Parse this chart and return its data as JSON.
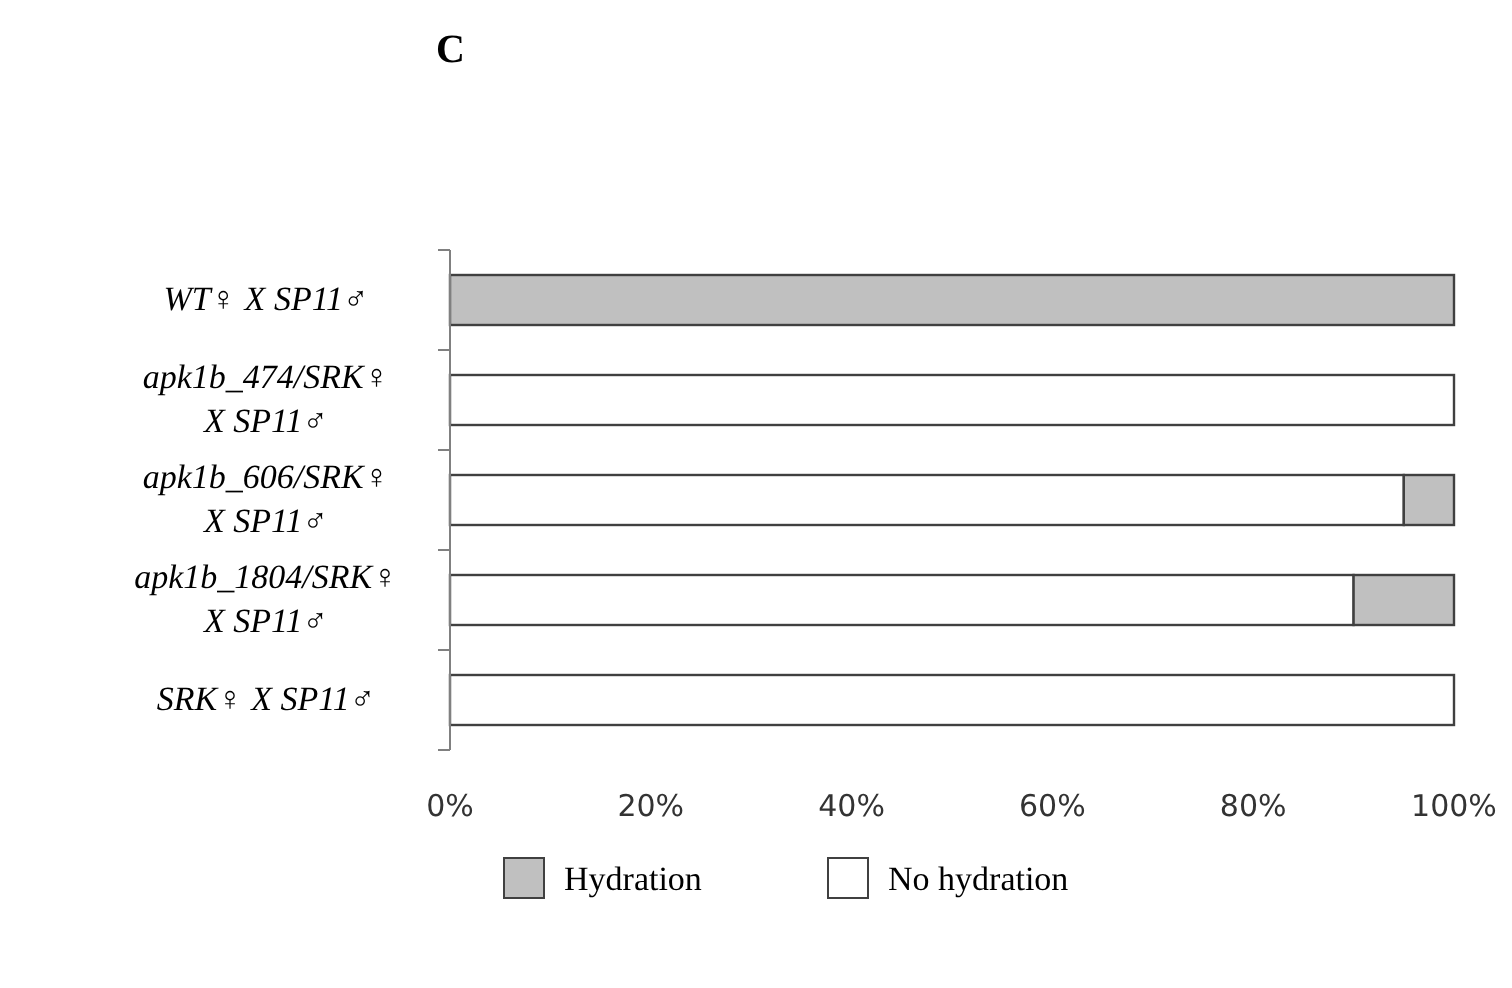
{
  "chart_data": {
    "type": "bar",
    "orientation": "horizontal",
    "stacked": true,
    "title": "C",
    "categories": [
      "WT♀ X SP11♂",
      "apk1b_474/SRK♀ X SP11♂",
      "apk1b_606/SRK♀ X SP11♂",
      "apk1b_1804/SRK♀ X SP11♂",
      "SRK♀ X SP11♂"
    ],
    "series": [
      {
        "name": "No hydration",
        "color": "#ffffff",
        "values": [
          0,
          100,
          95,
          90,
          100
        ]
      },
      {
        "name": "Hydration",
        "color": "#c0c0c0",
        "values": [
          100,
          0,
          5,
          10,
          0
        ]
      }
    ],
    "xlim": [
      0,
      100
    ],
    "xticks": [
      {
        "value": 0,
        "label": "0%"
      },
      {
        "value": 20,
        "label": "20%"
      },
      {
        "value": 40,
        "label": "40%"
      },
      {
        "value": 60,
        "label": "60%"
      },
      {
        "value": 80,
        "label": "80%"
      },
      {
        "value": 100,
        "label": "100%"
      }
    ],
    "grid": false,
    "legend": "bottom"
  }
}
